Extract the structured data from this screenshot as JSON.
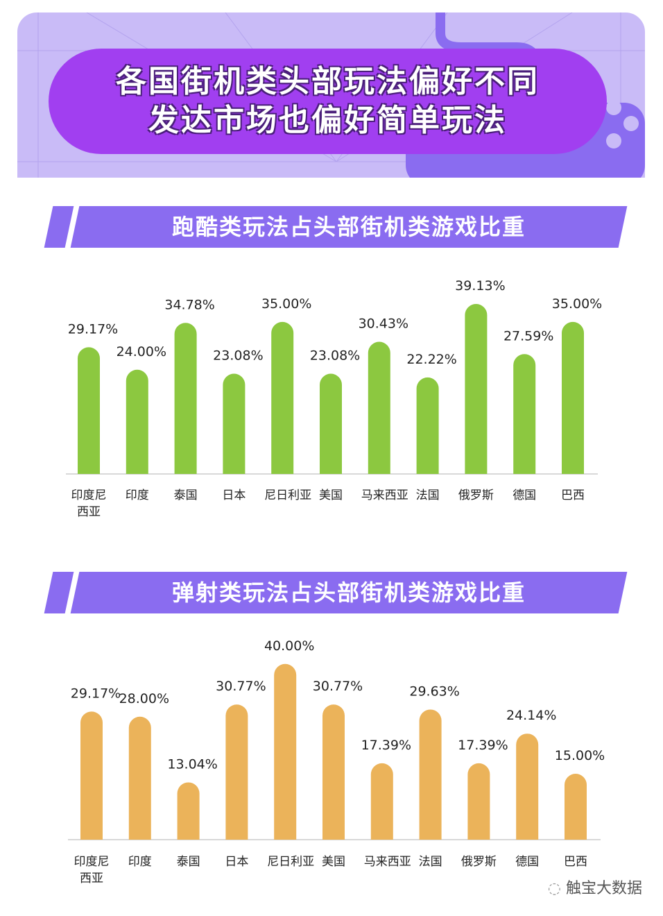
{
  "header": {
    "title_line1": "各国街机类头部玩法偏好不同",
    "title_line2": "发达市场也偏好简单玩法"
  },
  "colors": {
    "banner": "#c9bbf7",
    "pill": "#a13ff0",
    "section": "#8a6cf0",
    "green": "#8cc840",
    "orange": "#ebb35a"
  },
  "watermark": "触宝大数据",
  "chart_data": [
    {
      "type": "bar",
      "title": "跑酷类玩法占头部街机类游戏比重",
      "categories": [
        "印度尼西亚",
        "印度",
        "泰国",
        "日本",
        "尼日利亚",
        "美国",
        "马来西亚",
        "法国",
        "俄罗斯",
        "德国",
        "巴西"
      ],
      "values": [
        29.17,
        24.0,
        34.78,
        23.08,
        35.0,
        23.08,
        30.43,
        22.22,
        39.13,
        27.59,
        35.0
      ],
      "labels": [
        "29.17%",
        "24.00%",
        "34.78%",
        "23.08%",
        "35.00%",
        "23.08%",
        "30.43%",
        "22.22%",
        "39.13%",
        "27.59%",
        "35.00%"
      ],
      "color": "#8cc840",
      "ylim": [
        0,
        40
      ],
      "grid": false
    },
    {
      "type": "bar",
      "title": "弹射类玩法占头部街机类游戏比重",
      "categories": [
        "印度尼西亚",
        "印度",
        "泰国",
        "日本",
        "尼日利亚",
        "美国",
        "马来西亚",
        "法国",
        "俄罗斯",
        "德国",
        "巴西"
      ],
      "values": [
        29.17,
        28.0,
        13.04,
        30.77,
        40.0,
        30.77,
        17.39,
        29.63,
        17.39,
        24.14,
        15.0
      ],
      "labels": [
        "29.17%",
        "28.00%",
        "13.04%",
        "30.77%",
        "40.00%",
        "30.77%",
        "17.39%",
        "29.63%",
        "17.39%",
        "24.14%",
        "15.00%"
      ],
      "color": "#ebb35a",
      "ylim": [
        0,
        40
      ],
      "grid": false
    }
  ]
}
